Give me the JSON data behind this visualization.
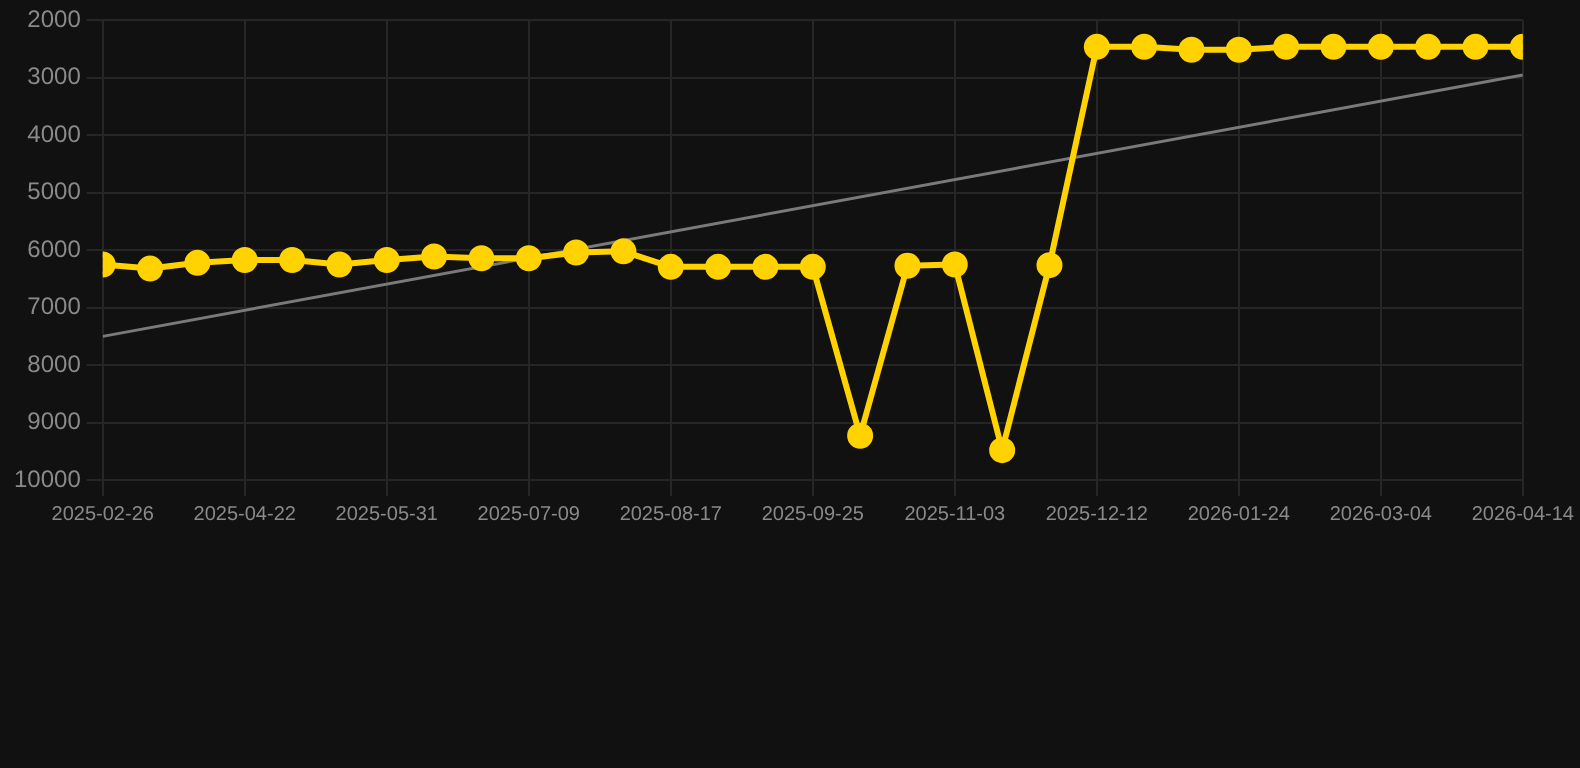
{
  "chart_data": {
    "type": "line",
    "categories": [
      "2025-02-26",
      null,
      null,
      "2025-04-22",
      null,
      null,
      "2025-05-31",
      null,
      null,
      "2025-07-09",
      null,
      null,
      "2025-08-17",
      null,
      null,
      "2025-09-25",
      null,
      null,
      "2025-11-03",
      null,
      null,
      "2025-12-12",
      null,
      null,
      "2026-01-24",
      null,
      null,
      "2026-03-04",
      null,
      null,
      "2026-04-14"
    ],
    "series": [
      {
        "color": "#ffd200",
        "marker": "circle",
        "values": [
          6250,
          6320,
          6220,
          6170,
          6170,
          6250,
          6170,
          6110,
          6140,
          6140,
          6040,
          6020,
          6290,
          6290,
          6290,
          6290,
          9230,
          6270,
          6250,
          9480,
          6260,
          2460,
          2460,
          2510,
          2510,
          2460,
          2460,
          2460,
          2460,
          2460,
          2460
        ]
      },
      {
        "type": "line",
        "color": "#7a7a7a",
        "marker": "none",
        "values": [
          7500,
          null,
          null,
          null,
          null,
          null,
          null,
          null,
          null,
          null,
          null,
          null,
          null,
          null,
          null,
          null,
          null,
          null,
          null,
          null,
          null,
          null,
          null,
          null,
          null,
          null,
          null,
          null,
          null,
          null,
          2950
        ]
      }
    ],
    "ylim": [
      10000,
      2000
    ],
    "yticks": [
      2000,
      3000,
      4000,
      5000,
      6000,
      7000,
      8000,
      9000,
      10000
    ],
    "grid": true,
    "legend": false
  }
}
